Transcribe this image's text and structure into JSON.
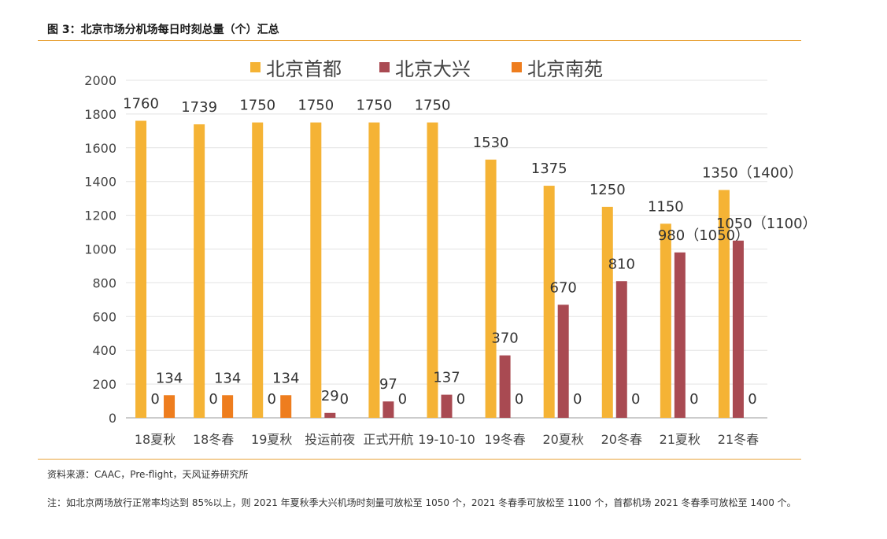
{
  "figure_title": "图 3：北京市场分机场每日时刻总量（个）汇总",
  "source": "资料来源：CAAC，Pre-flight，天风证券研究所",
  "note": "注：如北京两场放行正常率均达到 85%以上，则 2021 年夏秋季大兴机场时刻量可放松至 1050 个，2021 冬春季可放松至 1100 个，首都机场 2021 冬春季可放松至 1400 个。",
  "chart_data": {
    "type": "bar",
    "title": "",
    "xlabel": "",
    "ylabel": "",
    "ylim": [
      0,
      2000
    ],
    "yticks": [
      0,
      200,
      400,
      600,
      800,
      1000,
      1200,
      1400,
      1600,
      1800,
      2000
    ],
    "grid": true,
    "legend_position": "top",
    "categories": [
      "18夏秋",
      "18冬春",
      "19夏秋",
      "投运前夜",
      "正式开航",
      "19-10-10",
      "19冬春",
      "20夏秋",
      "20冬春",
      "21夏秋",
      "21冬春"
    ],
    "series": [
      {
        "name": "北京首都",
        "color": "#f5b335",
        "values": [
          1760,
          1739,
          1750,
          1750,
          1750,
          1750,
          1530,
          1375,
          1250,
          1150,
          1350
        ],
        "labels": [
          "1760",
          "1739",
          "1750",
          "1750",
          "1750",
          "1750",
          "1530",
          "1375",
          "1250",
          "1150",
          "1350（1400）"
        ]
      },
      {
        "name": "北京大兴",
        "color": "#a94a52",
        "values": [
          0,
          0,
          0,
          29,
          97,
          137,
          370,
          670,
          810,
          980,
          1050
        ],
        "labels": [
          "0",
          "0",
          "0",
          "29",
          "97",
          "137",
          "370",
          "670",
          "810",
          "980（1050）",
          "1050（1100）"
        ]
      },
      {
        "name": "北京南苑",
        "color": "#ee7d1e",
        "values": [
          134,
          134,
          134,
          0,
          0,
          0,
          0,
          0,
          0,
          0,
          0
        ],
        "labels": [
          "134",
          "134",
          "134",
          "0",
          "0",
          "0",
          "0",
          "0",
          "0",
          "0",
          "0"
        ]
      }
    ]
  }
}
